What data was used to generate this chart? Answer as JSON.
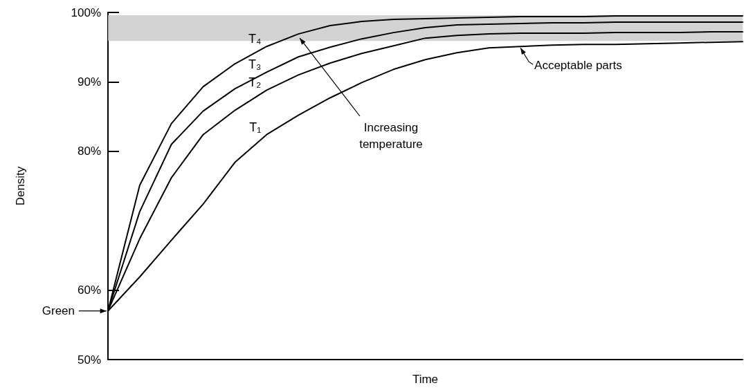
{
  "chart_data": {
    "type": "line",
    "xlabel": "Time",
    "ylabel": "Density",
    "categories": [
      null,
      null,
      null,
      null,
      null,
      null,
      null,
      null,
      null,
      null,
      null,
      null,
      null,
      null,
      null,
      null,
      null,
      null,
      null,
      null,
      null
    ],
    "series": [
      {
        "name": "T₄",
        "color": "#000000",
        "values": [
          57.0,
          75.1,
          84.0,
          89.3,
          92.6,
          95.1,
          96.9,
          98.1,
          98.7,
          99.0,
          99.1,
          99.2,
          99.3,
          99.4,
          99.4,
          99.4,
          99.5,
          99.5,
          99.5,
          99.5,
          99.5
        ]
      },
      {
        "name": "T₃",
        "color": "#000000",
        "values": [
          57.0,
          71.3,
          81.0,
          85.8,
          89.0,
          91.4,
          93.6,
          95.0,
          96.2,
          97.1,
          97.8,
          98.2,
          98.3,
          98.4,
          98.5,
          98.5,
          98.6,
          98.6,
          98.6,
          98.6,
          98.6
        ]
      },
      {
        "name": "T₂",
        "color": "#000000",
        "values": [
          57.0,
          67.4,
          76.2,
          82.4,
          85.9,
          88.8,
          91.0,
          92.7,
          94.1,
          95.2,
          96.3,
          96.7,
          96.9,
          97.0,
          97.0,
          97.0,
          97.1,
          97.1,
          97.1,
          97.2,
          97.2
        ]
      },
      {
        "name": "T₁",
        "color": "#000000",
        "values": [
          57.0,
          61.9,
          67.2,
          72.4,
          78.4,
          82.4,
          85.2,
          87.7,
          89.9,
          91.8,
          93.2,
          94.2,
          94.9,
          95.1,
          95.3,
          95.4,
          95.4,
          95.5,
          95.6,
          95.7,
          95.8
        ]
      }
    ],
    "ylim": [
      50,
      100
    ],
    "yticks": [
      {
        "value": 50,
        "label": "50%"
      },
      {
        "value": 60,
        "label": "60%"
      },
      {
        "value": 80,
        "label": "80%"
      },
      {
        "value": 90,
        "label": "90%"
      },
      {
        "value": 100,
        "label": "100%"
      }
    ],
    "bands": [
      {
        "axis": "y",
        "from": 95.9,
        "to": 99.6,
        "color": "#c8c8c8"
      }
    ],
    "annotations": [
      "Increasing temperature",
      "Green",
      "Acceptable parts"
    ],
    "tick_labels": "y",
    "grid": false,
    "legend": false,
    "line_style": "solid"
  }
}
